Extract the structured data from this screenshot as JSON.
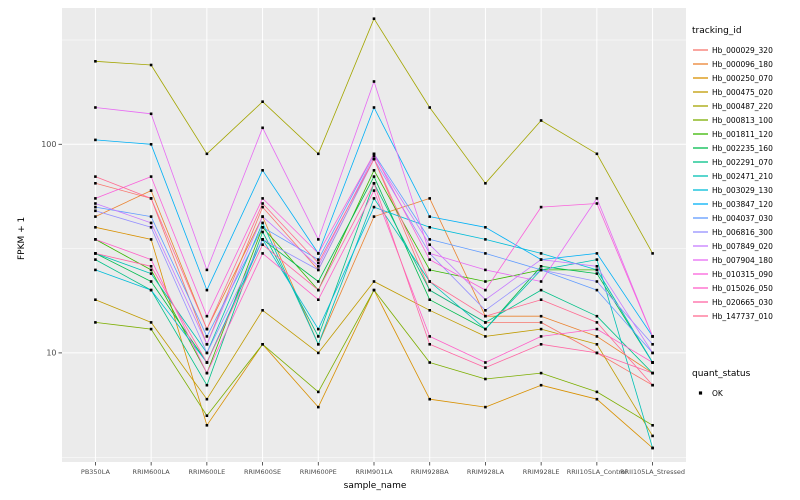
{
  "axes": {
    "y_title": "FPKM + 1",
    "x_title": "sample_name"
  },
  "legend": {
    "color_title": "tracking_id",
    "shape_title": "quant_status",
    "shape_items": [
      {
        "label": "OK"
      }
    ]
  },
  "colors": {
    "panel_bg": "#EBEBEB",
    "grid_major": "#FFFFFF",
    "grid_minor": "#FFFFFF",
    "tick_text": "#4D4D4D",
    "tick_mark": "#333333",
    "point": "#000000"
  },
  "chart_data": {
    "type": "line",
    "title": "",
    "xlabel": "sample_name",
    "ylabel": "FPKM + 1",
    "y_scale": "log10",
    "ylim": [
      3,
      450
    ],
    "y_ticks": [
      10,
      100
    ],
    "y_minor_ticks": [
      3.162,
      31.62,
      316.2
    ],
    "point_shape": "square",
    "x_categories": [
      "PB350LA",
      "RRIM600LA",
      "RRIM600LE",
      "RRIM600SE",
      "RRIM600PE",
      "RRIM901LA",
      "RRIM928BA",
      "RRIM928LA",
      "RRIM928LE",
      "RRII105LA_Control",
      "RRII105LA_Stressed"
    ],
    "series": [
      {
        "name": "Hb_000029_320",
        "color": "#F8766D",
        "values": [
          65,
          55,
          11,
          50,
          25,
          85,
          20,
          14,
          14,
          10,
          7
        ]
      },
      {
        "name": "Hb_000096_180",
        "color": "#EA8331",
        "values": [
          45,
          60,
          13,
          45,
          11,
          45,
          55,
          15,
          15,
          12,
          8
        ]
      },
      {
        "name": "Hb_000250_070",
        "color": "#D89000",
        "values": [
          40,
          35,
          4.5,
          11,
          5.5,
          20,
          6,
          5.5,
          7,
          6,
          3.5
        ]
      },
      {
        "name": "Hb_000475_020",
        "color": "#C09B00",
        "values": [
          18,
          14,
          6,
          16,
          10,
          22,
          16,
          12,
          13,
          11,
          4
        ]
      },
      {
        "name": "Hb_000487_220",
        "color": "#A3A500",
        "values": [
          250,
          240,
          90,
          160,
          90,
          400,
          150,
          65,
          130,
          90,
          30
        ]
      },
      {
        "name": "Hb_000813_100",
        "color": "#7CAE00",
        "values": [
          14,
          13,
          5,
          11,
          6.5,
          20,
          9,
          7.5,
          8,
          6.5,
          4.5
        ]
      },
      {
        "name": "Hb_001811_120",
        "color": "#39B600",
        "values": [
          35,
          25,
          8,
          40,
          20,
          75,
          25,
          22,
          25,
          25,
          9
        ]
      },
      {
        "name": "Hb_002235_160",
        "color": "#00BB4E",
        "values": [
          30,
          22,
          9,
          35,
          22,
          70,
          18,
          13,
          26,
          24,
          9
        ]
      },
      {
        "name": "Hb_002291_070",
        "color": "#00C087",
        "values": [
          28,
          20,
          7,
          38,
          12,
          65,
          20,
          14,
          20,
          15,
          8
        ]
      },
      {
        "name": "Hb_002471_210",
        "color": "#00C0B4",
        "values": [
          30,
          24,
          10,
          42,
          11,
          55,
          22,
          13,
          25,
          28,
          3.5
        ]
      },
      {
        "name": "Hb_003029_130",
        "color": "#00BCD8",
        "values": [
          25,
          20,
          9,
          35,
          13,
          50,
          40,
          35,
          30,
          25,
          9
        ]
      },
      {
        "name": "Hb_003847_120",
        "color": "#00B0F6",
        "values": [
          105,
          100,
          20,
          75,
          30,
          150,
          45,
          40,
          28,
          30,
          12
        ]
      },
      {
        "name": "Hb_004037_030",
        "color": "#619CFF",
        "values": [
          50,
          45,
          12,
          40,
          28,
          90,
          35,
          30,
          25,
          20,
          10
        ]
      },
      {
        "name": "Hb_006816_300",
        "color": "#9590FF",
        "values": [
          48,
          40,
          10,
          35,
          25,
          85,
          30,
          16,
          25,
          22,
          11
        ]
      },
      {
        "name": "Hb_007849_020",
        "color": "#C77CFF",
        "values": [
          52,
          42,
          11,
          45,
          26,
          88,
          33,
          18,
          28,
          26,
          10
        ]
      },
      {
        "name": "Hb_007904_180",
        "color": "#E76BF3",
        "values": [
          150,
          140,
          25,
          120,
          35,
          200,
          30,
          25,
          22,
          55,
          12
        ]
      },
      {
        "name": "Hb_010315_090",
        "color": "#FA62DB",
        "values": [
          55,
          70,
          15,
          55,
          30,
          90,
          28,
          20,
          50,
          52,
          12
        ]
      },
      {
        "name": "Hb_015026_050",
        "color": "#FF61C9",
        "values": [
          35,
          28,
          8,
          30,
          18,
          60,
          12,
          9,
          12,
          13,
          9
        ]
      },
      {
        "name": "Hb_020665_030",
        "color": "#FF67A4",
        "values": [
          30,
          26,
          9,
          33,
          20,
          65,
          11,
          8.5,
          11,
          10,
          8
        ]
      },
      {
        "name": "Hb_147737_010",
        "color": "#FF6C92",
        "values": [
          70,
          55,
          13,
          52,
          27,
          85,
          22,
          15,
          18,
          14,
          7
        ]
      }
    ]
  }
}
